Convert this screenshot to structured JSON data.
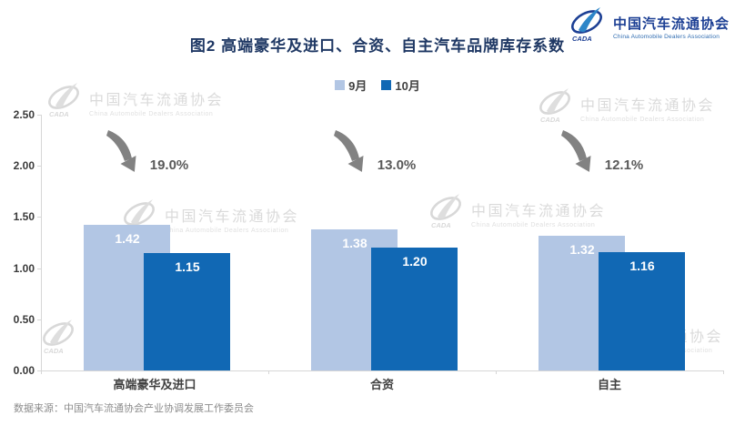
{
  "header": {
    "title": "图2  高端豪华及进口、合资、自主汽车品牌库存系数"
  },
  "logo": {
    "emblem": "cada-emblem",
    "badge": "CADA",
    "name": "中国汽车流通协会",
    "subname": "China Automobile Dealers Association"
  },
  "legend": [
    {
      "label": "9月",
      "color": "#b2c6e4"
    },
    {
      "label": "10月",
      "color": "#1168b4"
    }
  ],
  "chart_data": {
    "type": "bar",
    "title": "图2  高端豪华及进口、合资、自主汽车品牌库存系数",
    "categories": [
      "高端豪华及进口",
      "合资",
      "自主"
    ],
    "series": [
      {
        "name": "9月",
        "color": "#b2c6e4",
        "values": [
          1.42,
          1.38,
          1.32
        ]
      },
      {
        "name": "10月",
        "color": "#1168b4",
        "values": [
          1.15,
          1.2,
          1.16
        ]
      }
    ],
    "annotations": [
      {
        "category": "高端豪华及进口",
        "label": "19.0%",
        "icon": "decline-arrow"
      },
      {
        "category": "合资",
        "label": "13.0%",
        "icon": "decline-arrow"
      },
      {
        "category": "自主",
        "label": "12.1%",
        "icon": "decline-arrow"
      }
    ],
    "ylim": [
      0,
      2.5
    ],
    "yticks": [
      "0.00",
      "0.50",
      "1.00",
      "1.50",
      "2.00",
      "2.50"
    ],
    "grid": false,
    "legend_position": "top-center",
    "value_labels": "inside-top, white bold"
  },
  "watermark": {
    "badge": "CADA",
    "text": "中国汽车流通协会",
    "subtext": "China Automobile Dealers Association"
  },
  "footer": {
    "source": "数据来源：中国汽车流通协会产业协调发展工作委员会"
  }
}
